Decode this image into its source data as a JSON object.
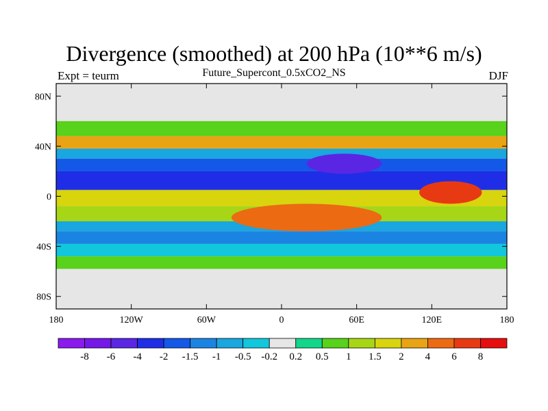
{
  "chart_data": {
    "type": "heatmap",
    "title": "Divergence (smoothed) at 200 hPa (10**6 m/s)",
    "subtitle": "Future_Supercont_0.5xCO2_NS",
    "left_label": "Expt = teurm",
    "right_label": "DJF",
    "x_ticks": [
      "180",
      "120W",
      "60W",
      "0",
      "60E",
      "120E",
      "180"
    ],
    "y_ticks": [
      "80N",
      "40N",
      "0",
      "40S",
      "80S"
    ],
    "xlim": [
      -180,
      180
    ],
    "ylim": [
      -90,
      90
    ],
    "grid": false,
    "legend": "bottom colorbar",
    "colorbar_labels": [
      "-8",
      "-6",
      "-4",
      "-2",
      "-1.5",
      "-1",
      "-0.5",
      "-0.2",
      "0.2",
      "0.5",
      "1",
      "1.5",
      "2",
      "4",
      "6",
      "8"
    ],
    "colorbar_colors": [
      "#8a1aee",
      "#7418e8",
      "#5a26e4",
      "#1f2ee6",
      "#1458e8",
      "#1b84e2",
      "#1aa6de",
      "#12c6dc",
      "#e6e6e6",
      "#12d68a",
      "#58d21a",
      "#a6d616",
      "#d8d40e",
      "#e8a414",
      "#ec6a12",
      "#e83a12",
      "#e60e0e"
    ],
    "zonal_bands": [
      {
        "lat": [
          60,
          90
        ],
        "value": 0
      },
      {
        "lat": [
          48,
          60
        ],
        "value": 0.6
      },
      {
        "lat": [
          38,
          48
        ],
        "value": 2.5
      },
      {
        "lat": [
          30,
          38
        ],
        "value": -0.6
      },
      {
        "lat": [
          20,
          30
        ],
        "value": -1.8
      },
      {
        "lat": [
          5,
          20
        ],
        "value": -3
      },
      {
        "lat": [
          -8,
          5
        ],
        "value": 1.8
      },
      {
        "lat": [
          -20,
          -8
        ],
        "value": 1.2
      },
      {
        "lat": [
          -28,
          -20
        ],
        "value": -0.7
      },
      {
        "lat": [
          -38,
          -28
        ],
        "value": -1.2
      },
      {
        "lat": [
          -48,
          -38
        ],
        "value": -0.4
      },
      {
        "lat": [
          -58,
          -48
        ],
        "value": 0.8
      },
      {
        "lat": [
          -90,
          -58
        ],
        "value": 0
      }
    ],
    "features": [
      {
        "lon": [
          110,
          160
        ],
        "lat": [
          -6,
          12
        ],
        "value": 7
      },
      {
        "lon": [
          -40,
          80
        ],
        "lat": [
          -28,
          -6
        ],
        "value": 5
      },
      {
        "lon": [
          20,
          80
        ],
        "lat": [
          18,
          34
        ],
        "value": -5
      }
    ]
  }
}
